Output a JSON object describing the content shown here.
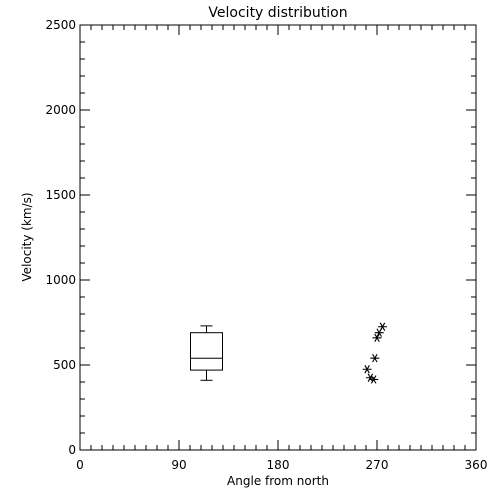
{
  "chart_data": {
    "type": "box-and-scatter",
    "title": "Velocity distribution",
    "xlabel": "Angle from north",
    "ylabel": "Velocity (km/s)",
    "xlim": [
      0,
      360
    ],
    "ylim": [
      0,
      2500
    ],
    "x_ticks": [
      0,
      90,
      180,
      270,
      360
    ],
    "y_ticks": [
      0,
      500,
      1000,
      1500,
      2000,
      2500
    ],
    "x_minor_step": 10,
    "y_minor_step": 100,
    "grid": false,
    "boxplot": {
      "x": 115,
      "whisker_low": 410,
      "q1": 470,
      "median": 540,
      "q3": 690,
      "whisker_high": 730
    },
    "points": [
      {
        "x": 261,
        "y": 475
      },
      {
        "x": 264,
        "y": 425
      },
      {
        "x": 267,
        "y": 415
      },
      {
        "x": 268,
        "y": 540
      },
      {
        "x": 270,
        "y": 660
      },
      {
        "x": 272,
        "y": 690
      },
      {
        "x": 275,
        "y": 725
      }
    ]
  }
}
